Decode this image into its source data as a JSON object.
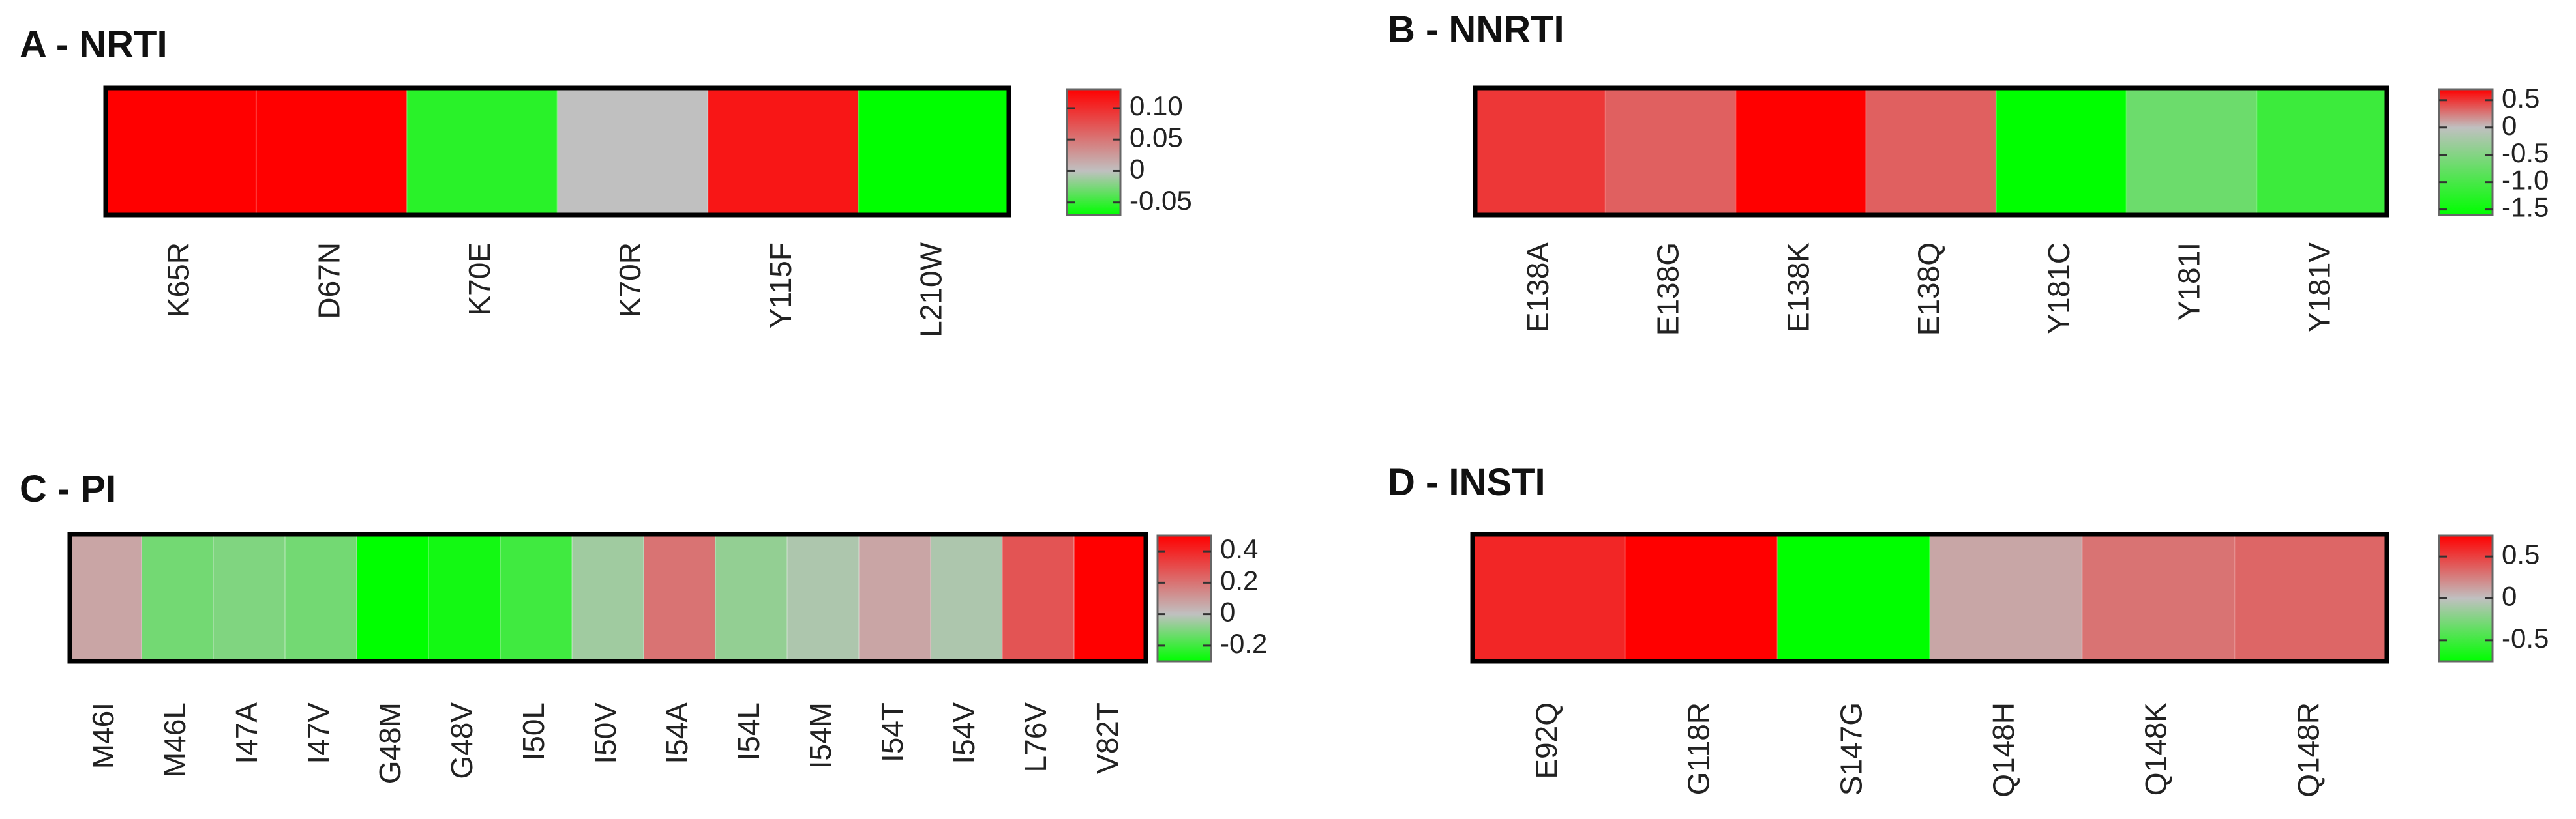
{
  "colors": {
    "green": "#00ff00",
    "grey": "#c0c0c0",
    "red": "#ff0000",
    "frame": "#000000"
  },
  "chart_data": [
    {
      "type": "heatmap",
      "title": "A - NRTI",
      "categories": [
        "K65R",
        "D67N",
        "K70E",
        "K70R",
        "Y115F",
        "L210W"
      ],
      "values": [
        0.13,
        0.13,
        -0.055,
        0.0,
        0.115,
        -0.07
      ],
      "colorbar": {
        "min": -0.07,
        "max": 0.13,
        "ticks": [
          0.1,
          0.05,
          0,
          -0.05
        ],
        "tick_labels": [
          "0.10",
          "0.05",
          "0",
          "-0.05"
        ]
      }
    },
    {
      "type": "heatmap",
      "title": "B - NNRTI",
      "categories": [
        "E138A",
        "E138G",
        "E138K",
        "E138Q",
        "Y181C",
        "Y181I",
        "Y181V"
      ],
      "values": [
        0.5,
        0.35,
        0.7,
        0.35,
        -1.6,
        -0.7,
        -1.1
      ],
      "colorbar": {
        "min": -1.6,
        "max": 0.7,
        "ticks": [
          0.5,
          0,
          -0.5,
          -1.0,
          -1.5
        ],
        "tick_labels": [
          "0.5",
          "0",
          "-0.5",
          "-1.0",
          "-1.5"
        ]
      }
    },
    {
      "type": "heatmap",
      "title": "C - PI",
      "categories": [
        "M46I",
        "M46L",
        "I47A",
        "I47V",
        "G48M",
        "G48V",
        "I50L",
        "I50V",
        "I54A",
        "I54L",
        "I54M",
        "I54T",
        "I54V",
        "L76V",
        "V82T"
      ],
      "values": [
        0.07,
        -0.12,
        -0.1,
        -0.12,
        -0.3,
        -0.27,
        -0.2,
        -0.05,
        0.2,
        -0.07,
        -0.03,
        0.07,
        -0.03,
        0.28,
        0.5
      ],
      "colorbar": {
        "min": -0.3,
        "max": 0.5,
        "ticks": [
          0.4,
          0.2,
          0,
          -0.2
        ],
        "tick_labels": [
          "0.4",
          "0.2",
          "0",
          "-0.2"
        ]
      }
    },
    {
      "type": "heatmap",
      "title": "D - INSTI",
      "categories": [
        "E92Q",
        "G118R",
        "S147G",
        "Q148H",
        "Q148K",
        "Q148R"
      ],
      "values": [
        0.6,
        0.75,
        -0.75,
        0.1,
        0.3,
        0.35
      ],
      "colorbar": {
        "min": -0.75,
        "max": 0.75,
        "ticks": [
          0.5,
          0,
          -0.5
        ],
        "tick_labels": [
          "0.5",
          "0",
          "-0.5"
        ]
      }
    }
  ]
}
